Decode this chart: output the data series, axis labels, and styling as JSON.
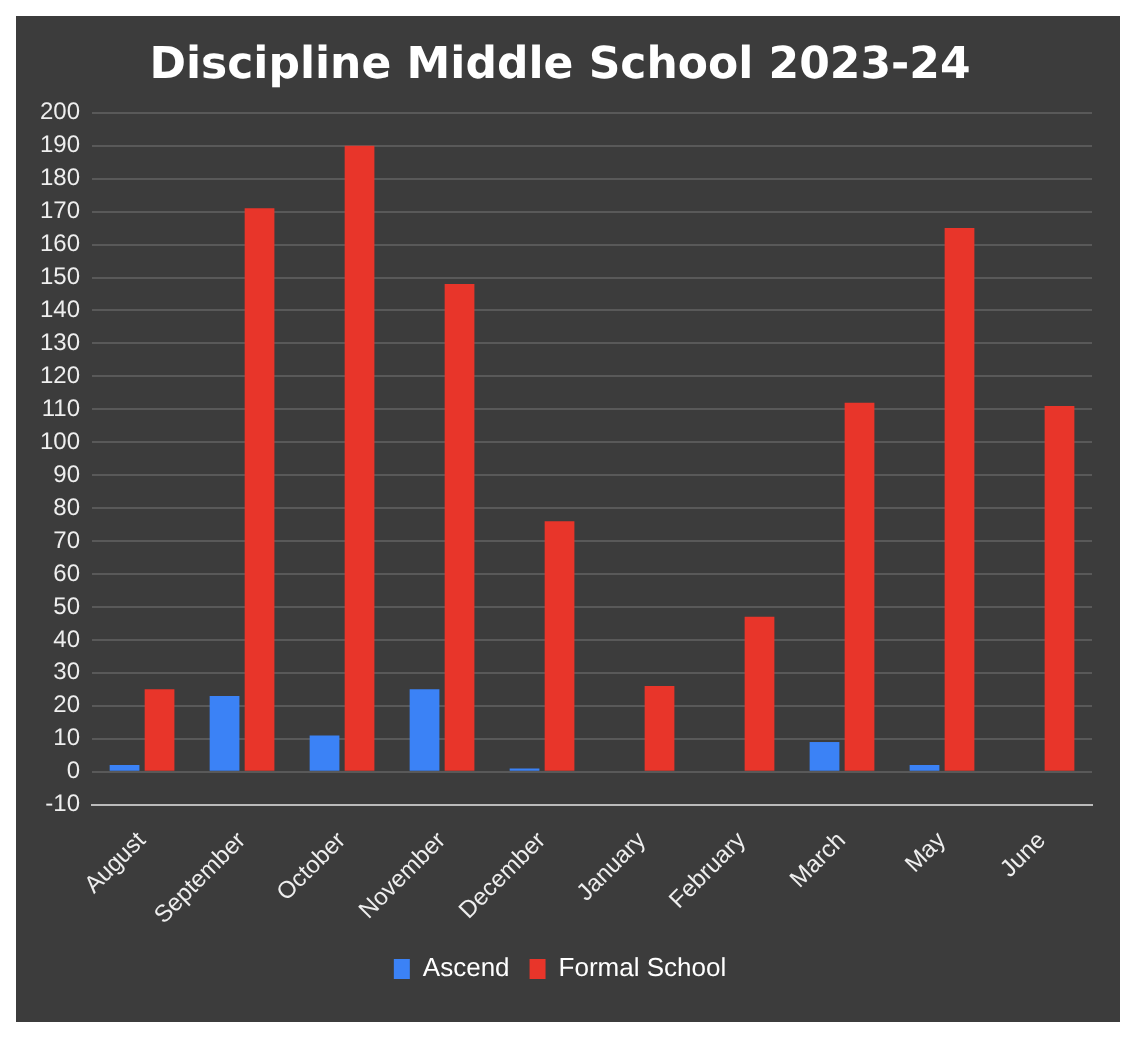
{
  "chart_data": {
    "type": "bar",
    "title": "Discipline Middle School 2023-24",
    "categories": [
      "August",
      "September",
      "October",
      "November",
      "December",
      "January",
      "February",
      "March",
      "May",
      "June"
    ],
    "series": [
      {
        "name": "Ascend",
        "color": "#3b82f6",
        "values": [
          2,
          23,
          11,
          25,
          1,
          0,
          0,
          9,
          2,
          0
        ]
      },
      {
        "name": "Formal School",
        "color": "#e8352a",
        "values": [
          25,
          171,
          190,
          148,
          76,
          26,
          47,
          112,
          165,
          111
        ]
      }
    ],
    "ylim": [
      -10,
      200
    ],
    "yticks": [
      -10,
      0,
      10,
      20,
      30,
      40,
      50,
      60,
      70,
      80,
      90,
      100,
      110,
      120,
      130,
      140,
      150,
      160,
      170,
      180,
      190,
      200
    ],
    "grid": "y",
    "legend": "bottom"
  }
}
